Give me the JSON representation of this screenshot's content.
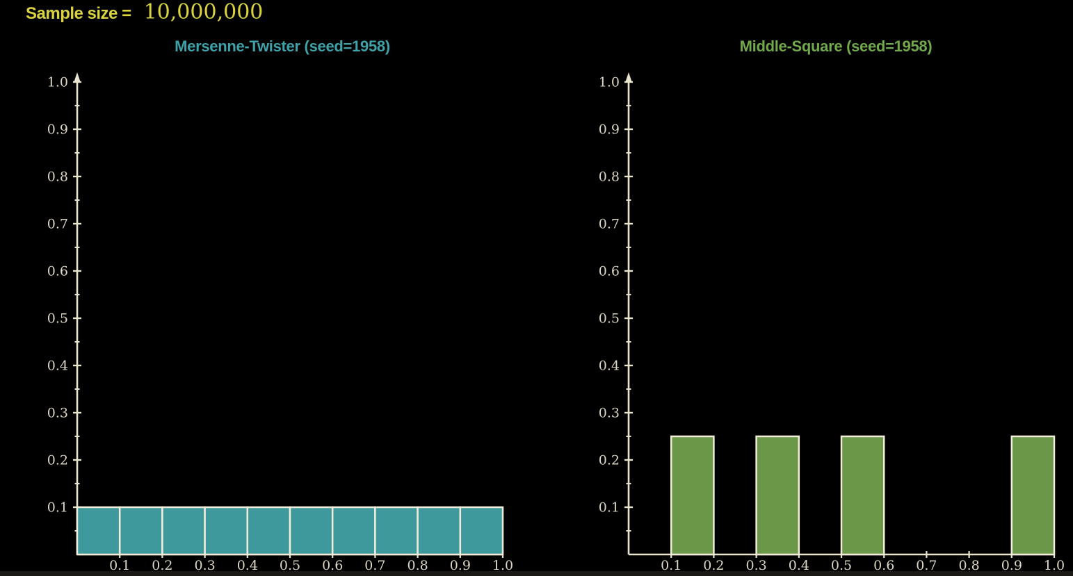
{
  "header": {
    "label": "Sample size =",
    "value": "10,000,000"
  },
  "colors": {
    "background": "#000000",
    "axis": "#e9e4ce",
    "tick_label": "#ddd8c3",
    "bar_border": "#f2edda",
    "sample_size_text": "#d9d43d",
    "bottom_edge": "#1a1915"
  },
  "chart_data": [
    {
      "type": "bar",
      "title": "Mersenne-Twister (seed=1958)",
      "title_color": "#3da3a8",
      "bar_color": "#3d999b",
      "xlabel": "",
      "ylabel": "",
      "xlim": [
        0,
        1
      ],
      "ylim": [
        0,
        1
      ],
      "bin_edges": [
        0.0,
        0.1,
        0.2,
        0.3,
        0.4,
        0.5,
        0.6,
        0.7,
        0.8,
        0.9,
        1.0
      ],
      "values": [
        0.1,
        0.1,
        0.1,
        0.1,
        0.1,
        0.1,
        0.1,
        0.1,
        0.1,
        0.1
      ],
      "xticks": [
        "0.1",
        "0.2",
        "0.3",
        "0.4",
        "0.5",
        "0.6",
        "0.7",
        "0.8",
        "0.9",
        "1.0"
      ],
      "yticks": [
        "0.1",
        "0.2",
        "0.3",
        "0.4",
        "0.5",
        "0.6",
        "0.7",
        "0.8",
        "0.9",
        "1.0"
      ],
      "y_minor_tick_step": 0.05,
      "grid": false,
      "legend": null
    },
    {
      "type": "bar",
      "title": "Middle-Square (seed=1958)",
      "title_color": "#72a94b",
      "bar_color": "#6b9748",
      "xlabel": "",
      "ylabel": "",
      "xlim": [
        0,
        1
      ],
      "ylim": [
        0,
        1
      ],
      "bin_edges": [
        0.0,
        0.1,
        0.2,
        0.3,
        0.4,
        0.5,
        0.6,
        0.7,
        0.8,
        0.9,
        1.0
      ],
      "values": [
        0,
        0.25,
        0,
        0.25,
        0,
        0.25,
        0,
        0,
        0,
        0.25
      ],
      "xticks": [
        "0.1",
        "0.2",
        "0.3",
        "0.4",
        "0.5",
        "0.6",
        "0.7",
        "0.8",
        "0.9",
        "1.0"
      ],
      "yticks": [
        "0.1",
        "0.2",
        "0.3",
        "0.4",
        "0.5",
        "0.6",
        "0.7",
        "0.8",
        "0.9",
        "1.0"
      ],
      "y_minor_tick_step": 0.05,
      "grid": false,
      "legend": null
    }
  ]
}
